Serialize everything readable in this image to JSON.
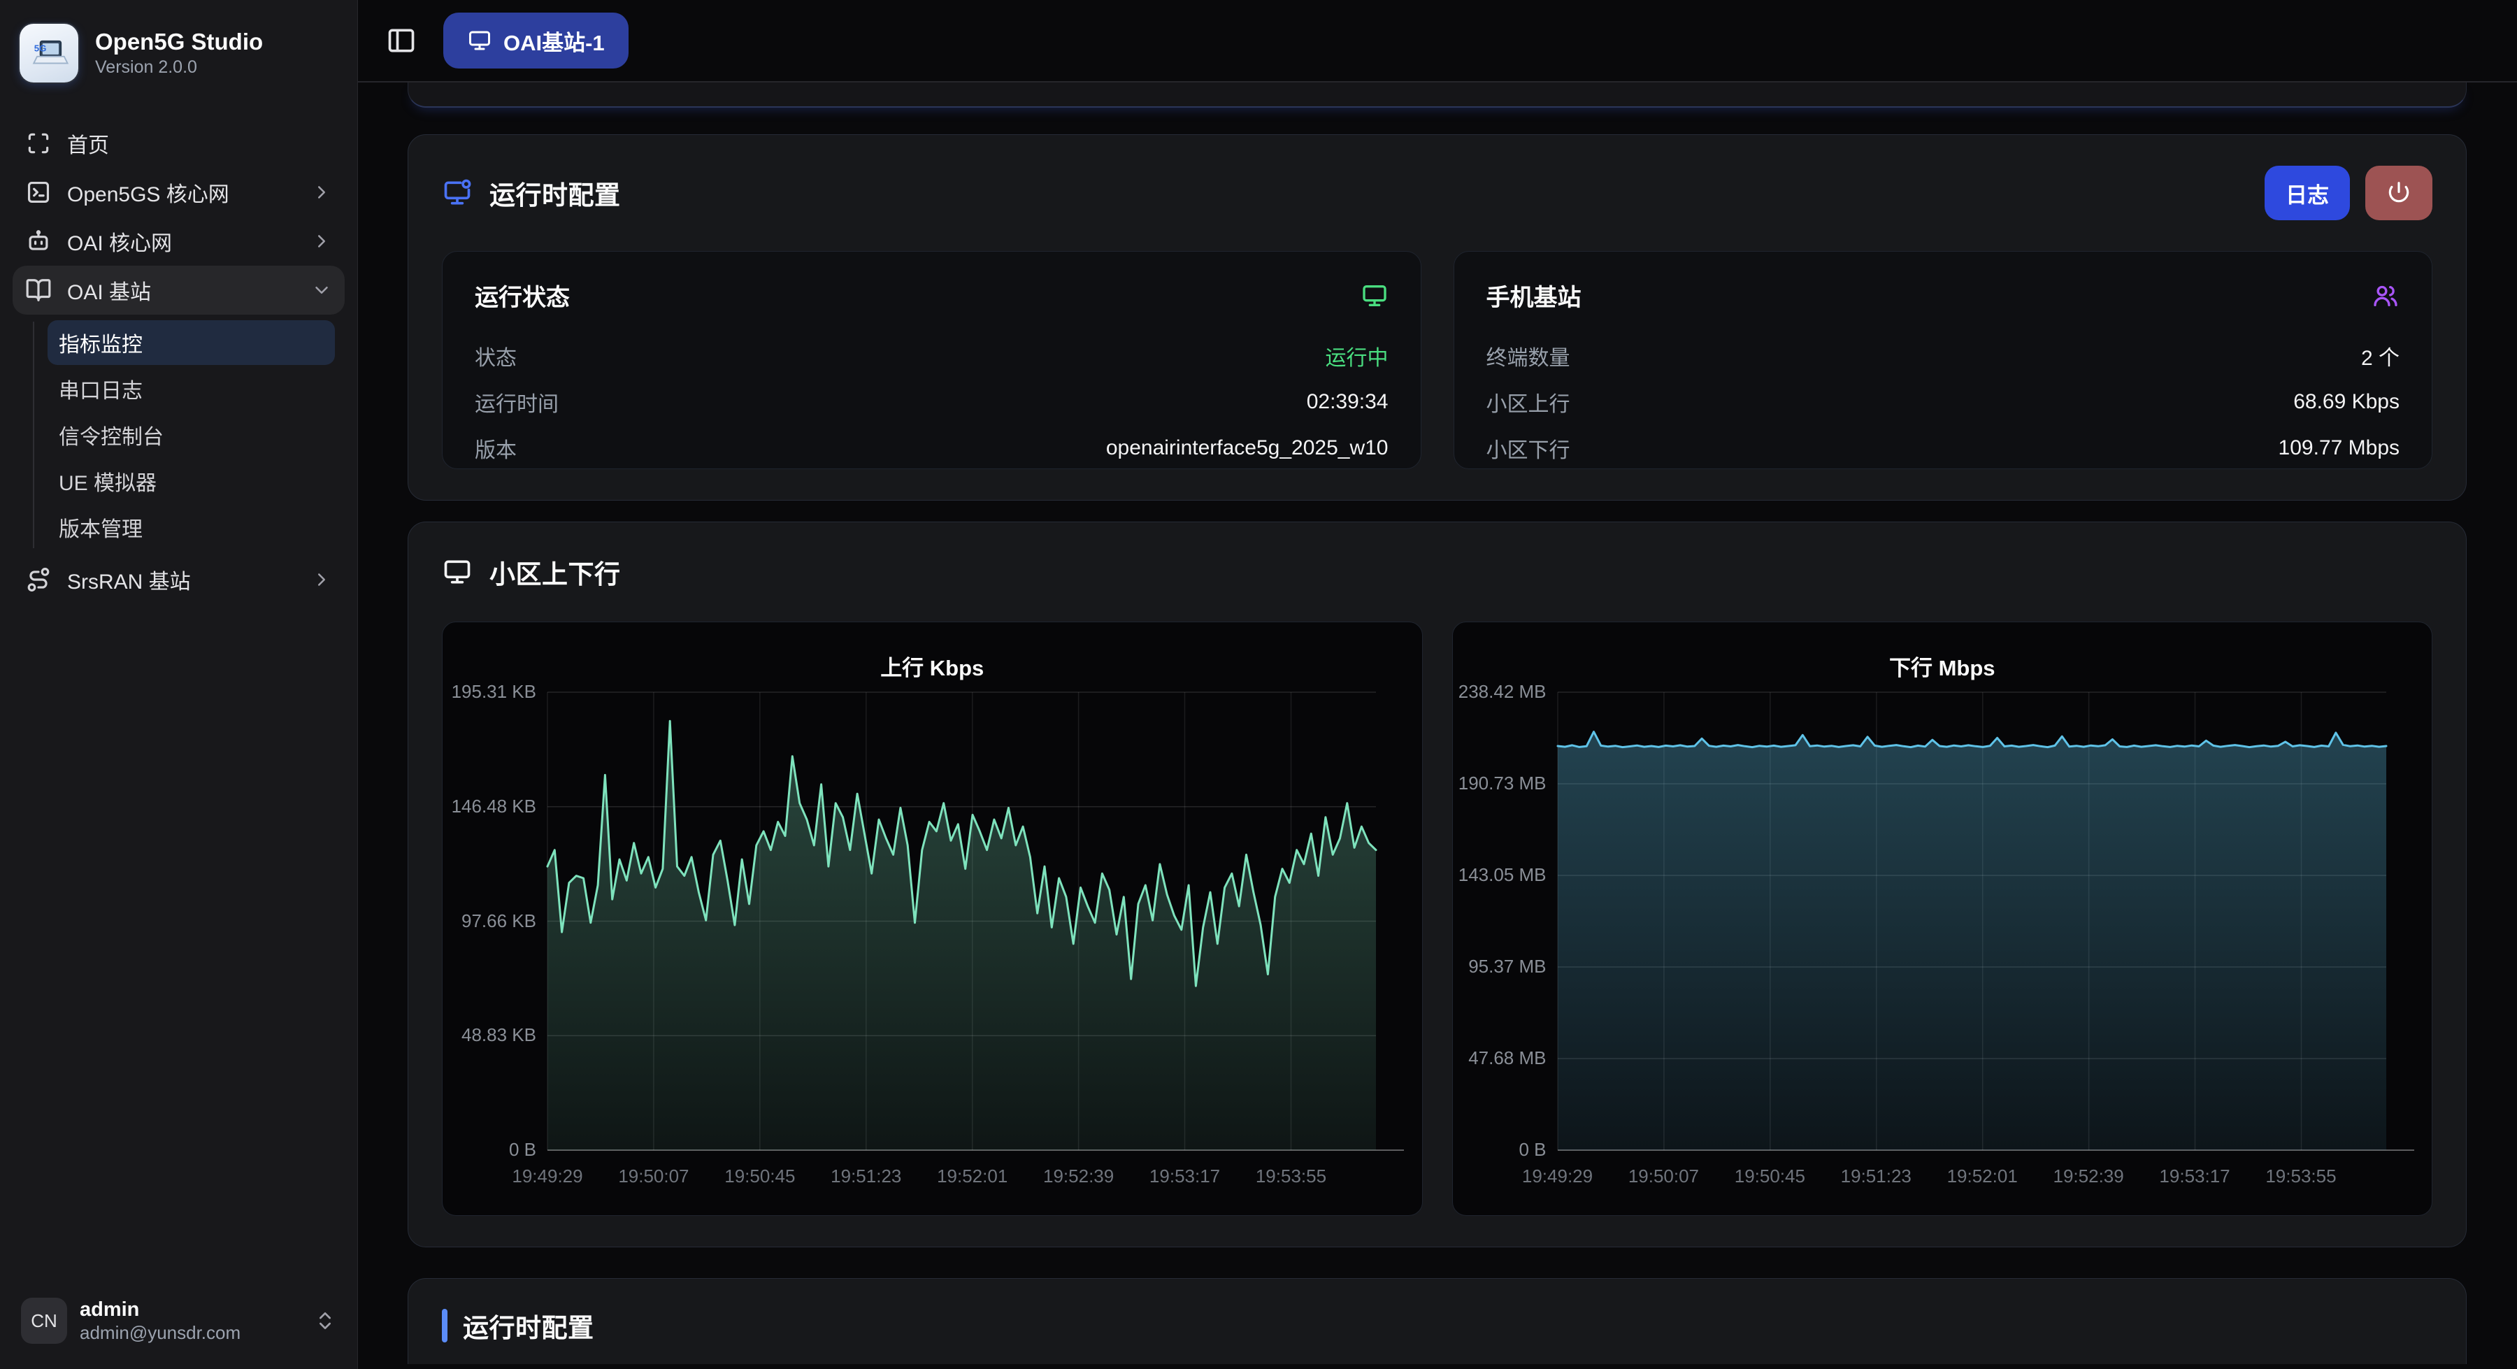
{
  "app": {
    "name": "Open5G Studio",
    "version": "Version 2.0.0"
  },
  "topbar": {
    "device_button": "OAI基站-1"
  },
  "sidebar": {
    "items": [
      {
        "label": "首页",
        "icon": "scan-icon"
      },
      {
        "label": "Open5GS 核心网",
        "icon": "terminal-square-icon"
      },
      {
        "label": "OAI 核心网",
        "icon": "bot-icon"
      },
      {
        "label": "OAI 基站",
        "icon": "book-open-icon"
      },
      {
        "label": "SrsRAN 基站",
        "icon": "route-icon"
      }
    ],
    "submenu": {
      "items": [
        {
          "label": "指标监控"
        },
        {
          "label": "串口日志"
        },
        {
          "label": "信令控制台"
        },
        {
          "label": "UE 模拟器"
        },
        {
          "label": "版本管理"
        }
      ]
    },
    "user": {
      "initials": "CN",
      "name": "admin",
      "email": "admin@yunsdr.com"
    }
  },
  "runtime_card": {
    "title": "运行时配置",
    "log_button": "日志",
    "status_panel": {
      "title": "运行状态",
      "rows": [
        {
          "label": "状态",
          "value": "运行中"
        },
        {
          "label": "运行时间",
          "value": "02:39:34"
        },
        {
          "label": "版本",
          "value": "openairinterface5g_2025_w10"
        }
      ]
    },
    "ue_panel": {
      "title": "手机基站",
      "rows": [
        {
          "label": "终端数量",
          "value": "2 个"
        },
        {
          "label": "小区上行",
          "value": "68.69 Kbps"
        },
        {
          "label": "小区下行",
          "value": "109.77 Mbps"
        }
      ]
    }
  },
  "cell_card": {
    "title": "小区上下行"
  },
  "bottom_card": {
    "title": "运行时配置"
  },
  "colors": {
    "accent_blue": "#2e49de",
    "device_button_indigo": "#2d3f9e",
    "danger_muted_red": "#9d5353",
    "success_green": "#4ade80",
    "purple": "#a855f7",
    "header_icon_blue": "#4a72f5",
    "accent_bar_blue": "#5b8cf8",
    "uplink_line": "#7ee3bd",
    "downlink_line": "#5fc3e8"
  },
  "icons": [
    "panel-left-icon",
    "monitor-icon",
    "scan-icon",
    "terminal-square-icon",
    "bot-icon",
    "book-open-icon",
    "route-icon",
    "chevron-right-icon",
    "chevron-down-icon",
    "chevrons-up-down-icon",
    "monitor-dot-icon",
    "power-icon",
    "users-icon"
  ],
  "chart_data": [
    {
      "type": "area",
      "title": "上行 Kbps",
      "unit": "KB",
      "ymax": 195.31,
      "yticks": [
        "195.31 KB",
        "146.48 KB",
        "97.66 KB",
        "48.83 KB",
        "0 B"
      ],
      "x_labels": [
        "19:49:29",
        "19:50:07",
        "19:50:45",
        "19:51:23",
        "19:52:01",
        "19:52:39",
        "19:53:17",
        "19:53:55"
      ],
      "line_color": "#7ee3bd",
      "fill_top": "rgba(126,227,189,0.30)",
      "fill_bottom": "rgba(126,227,189,0.07)",
      "values": [
        121,
        128,
        93,
        114,
        117,
        116,
        97,
        113,
        160,
        107,
        124,
        115,
        131,
        118,
        125,
        112,
        120,
        183,
        121,
        117,
        125,
        110,
        98,
        126,
        132,
        115,
        96,
        124,
        105,
        130,
        136,
        128,
        140,
        134,
        168,
        148,
        141,
        130,
        156,
        121,
        148,
        142,
        128,
        152,
        135,
        118,
        141,
        133,
        126,
        146,
        130,
        97,
        128,
        140,
        136,
        148,
        132,
        139,
        120,
        143,
        136,
        128,
        141,
        133,
        146,
        130,
        138,
        125,
        101,
        121,
        95,
        116,
        108,
        88,
        112,
        104,
        97,
        118,
        111,
        92,
        108,
        73,
        105,
        113,
        98,
        122,
        109,
        100,
        94,
        113,
        70,
        95,
        110,
        88,
        112,
        118,
        104,
        126,
        110,
        96,
        75,
        108,
        120,
        114,
        128,
        122,
        135,
        117,
        142,
        126,
        133,
        148,
        129,
        138,
        131,
        128
      ]
    },
    {
      "type": "area",
      "title": "下行 Mbps",
      "unit": "MB",
      "ymax": 238.42,
      "yticks": [
        "238.42 MB",
        "190.73 MB",
        "143.05 MB",
        "95.37 MB",
        "47.68 MB",
        "0 B"
      ],
      "x_labels": [
        "19:49:29",
        "19:50:07",
        "19:50:45",
        "19:51:23",
        "19:52:01",
        "19:52:39",
        "19:53:17",
        "19:53:55"
      ],
      "line_color": "#5fc3e8",
      "fill_top": "rgba(95,195,232,0.32)",
      "fill_bottom": "rgba(95,195,232,0.08)",
      "values": [
        210.4,
        210.0,
        210.8,
        209.9,
        210.3,
        217.8,
        210.6,
        210.1,
        210.5,
        209.8,
        210.2,
        210.7,
        210.0,
        210.4,
        209.9,
        210.6,
        210.2,
        210.8,
        210.1,
        210.4,
        214.3,
        210.5,
        210.0,
        210.6,
        210.2,
        210.9,
        210.3,
        209.8,
        210.5,
        210.1,
        210.6,
        210.0,
        210.4,
        210.8,
        216.1,
        210.3,
        210.7,
        210.1,
        210.5,
        209.9,
        210.4,
        210.8,
        210.2,
        215.2,
        210.6,
        210.0,
        210.5,
        210.9,
        210.3,
        209.8,
        210.6,
        210.1,
        213.6,
        210.4,
        210.0,
        210.7,
        210.2,
        210.8,
        210.3,
        209.9,
        210.5,
        214.6,
        210.2,
        210.6,
        210.0,
        210.4,
        210.9,
        210.3,
        209.8,
        210.6,
        215.4,
        210.1,
        210.5,
        210.0,
        210.7,
        210.3,
        210.8,
        213.9,
        210.2,
        209.9,
        210.6,
        210.0,
        210.4,
        210.8,
        210.3,
        209.9,
        210.5,
        210.1,
        210.7,
        210.2,
        213.2,
        210.6,
        210.0,
        210.5,
        210.9,
        210.4,
        209.8,
        210.3,
        210.7,
        210.1,
        210.5,
        212.6,
        210.2,
        210.8,
        210.4,
        209.9,
        210.6,
        210.2,
        217.3,
        211.0,
        210.3,
        210.7,
        210.1,
        210.5,
        210.0,
        210.4
      ]
    }
  ]
}
